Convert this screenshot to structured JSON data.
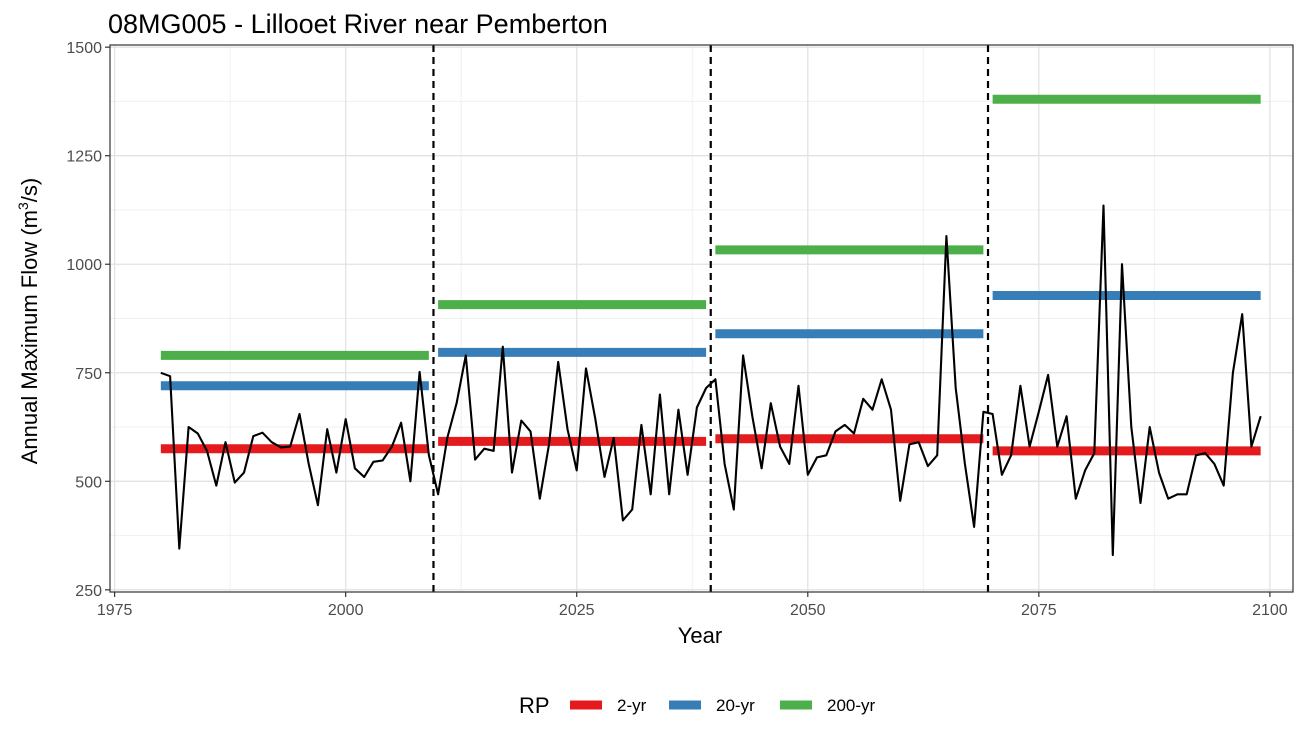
{
  "chart_data": {
    "type": "line",
    "title": "08MG005 - Lillooet River near Pemberton",
    "xlabel": "Year",
    "ylabel_prefix": "Annual Maximum Flow (m",
    "ylabel_sup": "3",
    "ylabel_suffix": "/s)",
    "xlim": [
      1974.5,
      2102.5
    ],
    "ylim": [
      245,
      1505
    ],
    "xticks": [
      1975,
      2000,
      2025,
      2050,
      2075,
      2100
    ],
    "yticks": [
      250,
      500,
      750,
      1000,
      1250,
      1500
    ],
    "grid": true,
    "legend_placement": "bottom",
    "legend_title": "RP",
    "period_dividers": [
      2009.5,
      2039.5,
      2069.5
    ],
    "flow_series": {
      "color": "#000000",
      "x": [
        1980,
        1981,
        1982,
        1983,
        1984,
        1985,
        1986,
        1987,
        1988,
        1989,
        1990,
        1991,
        1992,
        1993,
        1994,
        1995,
        1996,
        1997,
        1998,
        1999,
        2000,
        2001,
        2002,
        2003,
        2004,
        2005,
        2006,
        2007,
        2008,
        2009,
        2010,
        2011,
        2012,
        2013,
        2014,
        2015,
        2016,
        2017,
        2018,
        2019,
        2020,
        2021,
        2022,
        2023,
        2024,
        2025,
        2026,
        2027,
        2028,
        2029,
        2030,
        2031,
        2032,
        2033,
        2034,
        2035,
        2036,
        2037,
        2038,
        2039,
        2040,
        2041,
        2042,
        2043,
        2044,
        2045,
        2046,
        2047,
        2048,
        2049,
        2050,
        2051,
        2052,
        2053,
        2054,
        2055,
        2056,
        2057,
        2058,
        2059,
        2060,
        2061,
        2062,
        2063,
        2064,
        2065,
        2066,
        2067,
        2068,
        2069,
        2070,
        2071,
        2072,
        2073,
        2074,
        2075,
        2076,
        2077,
        2078,
        2079,
        2080,
        2081,
        2082,
        2083,
        2084,
        2085,
        2086,
        2087,
        2088,
        2089,
        2090,
        2091,
        2092,
        2093,
        2094,
        2095,
        2096,
        2097,
        2098,
        2099
      ],
      "y": [
        750,
        742,
        345,
        625,
        610,
        570,
        490,
        590,
        497,
        520,
        604,
        612,
        590,
        578,
        580,
        655,
        540,
        445,
        620,
        520,
        643,
        530,
        510,
        545,
        548,
        580,
        635,
        500,
        752,
        560,
        470,
        600,
        680,
        790,
        550,
        575,
        570,
        810,
        520,
        640,
        615,
        460,
        585,
        775,
        620,
        525,
        760,
        645,
        510,
        600,
        410,
        435,
        630,
        470,
        700,
        470,
        665,
        515,
        670,
        715,
        735,
        540,
        435,
        790,
        650,
        530,
        680,
        580,
        540,
        720,
        515,
        555,
        560,
        615,
        630,
        610,
        690,
        665,
        735,
        665,
        455,
        585,
        590,
        535,
        560,
        1065,
        715,
        540,
        395,
        660,
        655,
        515,
        560,
        720,
        580,
        660,
        745,
        580,
        650,
        460,
        525,
        565,
        1135,
        330,
        1000,
        625,
        450,
        625,
        520,
        460,
        470,
        470,
        560,
        565,
        540,
        490,
        750,
        885,
        580,
        650
      ]
    },
    "series": [
      {
        "name": "2-yr",
        "color": "#e41a1c",
        "segments": [
          {
            "x": [
              1980,
              2009
            ],
            "y": 575
          },
          {
            "x": [
              2010,
              2039
            ],
            "y": 592
          },
          {
            "x": [
              2040,
              2069
            ],
            "y": 598
          },
          {
            "x": [
              2070,
              2099
            ],
            "y": 570
          }
        ]
      },
      {
        "name": "20-yr",
        "color": "#377eb8",
        "segments": [
          {
            "x": [
              1980,
              2009
            ],
            "y": 720
          },
          {
            "x": [
              2010,
              2039
            ],
            "y": 797
          },
          {
            "x": [
              2040,
              2069
            ],
            "y": 840
          },
          {
            "x": [
              2070,
              2099
            ],
            "y": 928
          }
        ]
      },
      {
        "name": "200-yr",
        "color": "#4daf4a",
        "segments": [
          {
            "x": [
              1980,
              2009
            ],
            "y": 790
          },
          {
            "x": [
              2010,
              2039
            ],
            "y": 907
          },
          {
            "x": [
              2040,
              2069
            ],
            "y": 1033
          },
          {
            "x": [
              2070,
              2099
            ],
            "y": 1380
          }
        ]
      }
    ]
  }
}
